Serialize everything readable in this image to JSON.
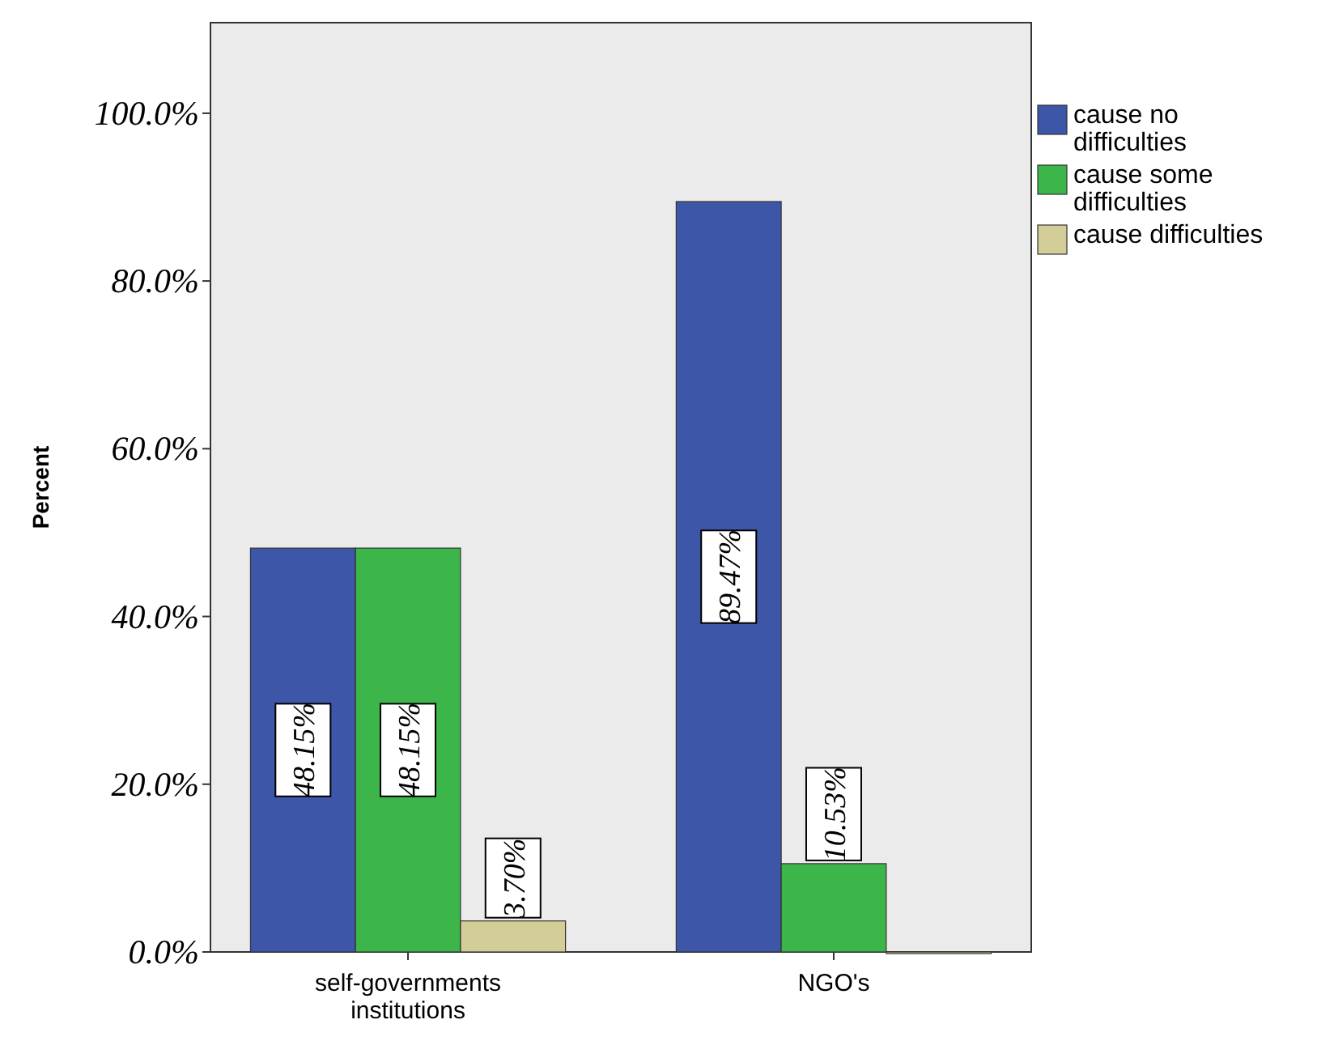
{
  "chart_data": {
    "type": "bar",
    "ylabel": "Percent",
    "categories": [
      "self-governments institutions",
      "NGO's"
    ],
    "series": [
      {
        "name": "cause no difficulties",
        "color": "#3e56a8",
        "values": [
          48.15,
          89.47
        ],
        "value_labels": [
          "48.15%",
          "89.47%"
        ]
      },
      {
        "name": "cause some difficulties",
        "color": "#3cb64a",
        "values": [
          48.15,
          10.53
        ],
        "value_labels": [
          "48.15%",
          "10.53%"
        ]
      },
      {
        "name": "cause difficulties",
        "color": "#d3cd97",
        "values": [
          3.7,
          0
        ],
        "value_labels": [
          "3.70%",
          null
        ]
      }
    ],
    "ylim": [
      0,
      110.8
    ],
    "yticks": [
      {
        "value": 0,
        "label": "0.0%"
      },
      {
        "value": 20,
        "label": "20.0%"
      },
      {
        "value": 40,
        "label": "40.0%"
      },
      {
        "value": 60,
        "label": "60.0%"
      },
      {
        "value": 80,
        "label": "80.0%"
      },
      {
        "value": 100,
        "label": "100.0%"
      }
    ],
    "grid": false,
    "legend": "right"
  }
}
